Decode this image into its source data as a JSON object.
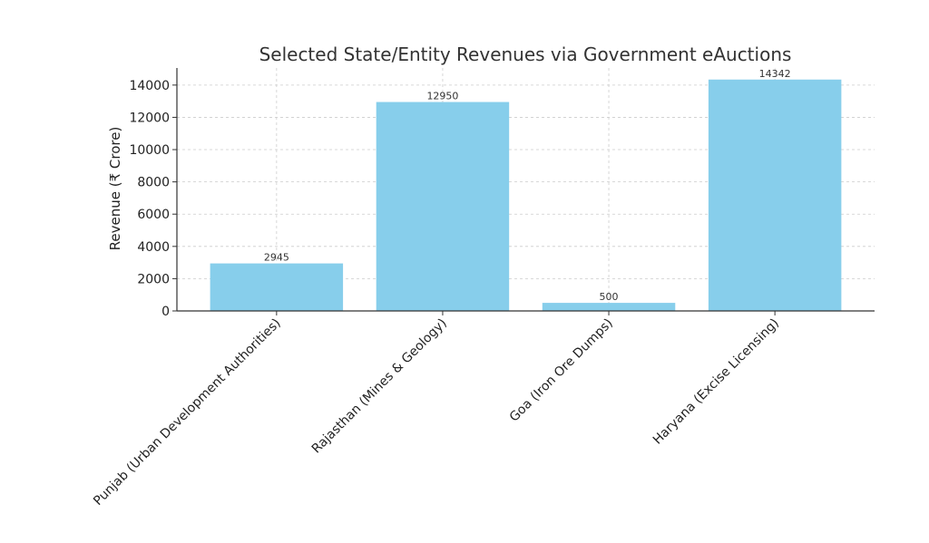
{
  "chart_data": {
    "type": "bar",
    "title": "Selected State/Entity Revenues via Government eAuctions",
    "xlabel": "",
    "ylabel": "Revenue (₹ Crore)",
    "categories": [
      "Punjab (Urban Development Authorities)",
      "Rajasthan (Mines & Geology)",
      "Goa (Iron Ore Dumps)",
      "Haryana (Excise Licensing)"
    ],
    "values": [
      2945,
      12950,
      500,
      14342
    ],
    "value_labels": [
      "2945",
      "12950",
      "500",
      "14342"
    ],
    "yticks": [
      0,
      2000,
      4000,
      6000,
      8000,
      10000,
      12000,
      14000
    ],
    "ytick_labels": [
      "0",
      "2000",
      "4000",
      "6000",
      "8000",
      "10000",
      "12000",
      "14000"
    ],
    "ylim": [
      0,
      15059
    ],
    "grid": true,
    "bar_color": "#87CEEB"
  }
}
